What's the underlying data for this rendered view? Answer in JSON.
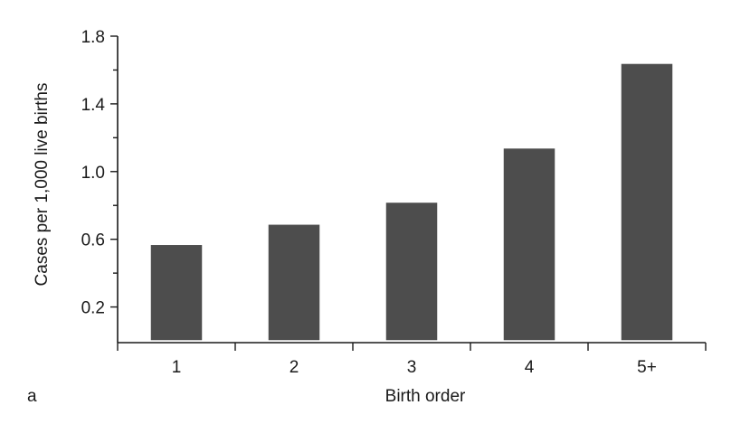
{
  "chart_data": {
    "type": "bar",
    "panel_label": "a",
    "xlabel": "Birth order",
    "ylabel": "Cases per 1,000 live births",
    "categories": [
      "1",
      "2",
      "3",
      "4",
      "5+"
    ],
    "values": [
      0.57,
      0.69,
      0.82,
      1.14,
      1.64
    ],
    "ylim": [
      0,
      1.8
    ],
    "yticks": [
      0.2,
      0.6,
      1.0,
      1.4,
      1.8
    ],
    "ytick_labels": [
      "0.2",
      "0.6",
      "1.0",
      "1.4",
      "1.8"
    ],
    "grid": false,
    "colors": {
      "bar_fill": "#4d4d4d",
      "bar_edge": "#ffffff",
      "axis": "#1a1a1a"
    }
  }
}
